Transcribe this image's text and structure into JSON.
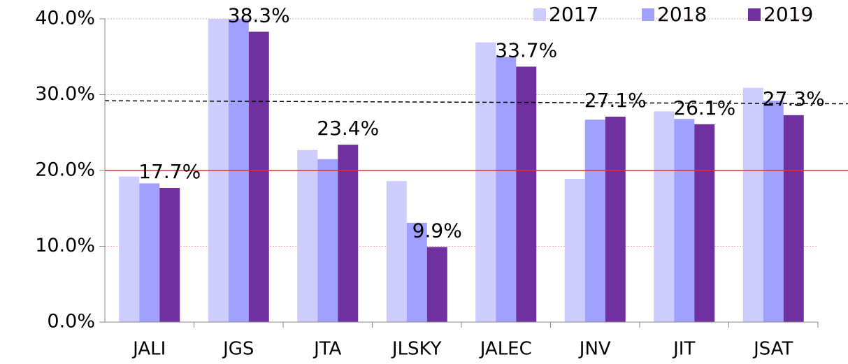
{
  "chart_data": {
    "type": "bar",
    "categories": [
      "JALI",
      "JGS",
      "JTA",
      "JLSKY",
      "JALEC",
      "JNV",
      "JIT",
      "JSAT"
    ],
    "series": [
      {
        "name": "2017",
        "color": "#ccccff",
        "values": [
          19.2,
          40.0,
          22.7,
          18.6,
          36.9,
          18.9,
          27.8,
          30.9
        ]
      },
      {
        "name": "2018",
        "color": "#a0a0ff",
        "values": [
          18.3,
          40.0,
          21.5,
          13.1,
          35.0,
          26.7,
          26.8,
          29.2
        ]
      },
      {
        "name": "2019",
        "color": "#7030a0",
        "values": [
          17.7,
          38.3,
          23.4,
          9.9,
          33.7,
          27.1,
          26.1,
          27.3
        ],
        "value_labels": [
          "17.7%",
          "38.3%",
          "23.4%",
          "9.9%",
          "33.7%",
          "27.1%",
          "26.1%",
          "27.3%"
        ]
      }
    ],
    "ylim": [
      0,
      40
    ],
    "yticks": [
      {
        "value": 0,
        "label": "0.0%"
      },
      {
        "value": 10,
        "label": "10.0%"
      },
      {
        "value": 20,
        "label": "20.0%"
      },
      {
        "value": 30,
        "label": "30.0%"
      },
      {
        "value": 40,
        "label": "40.0%"
      }
    ],
    "grid": true,
    "grid_color": "#f2a6a6",
    "reference_lines": [
      {
        "values": [
          20.0,
          20.0
        ],
        "color": "#e03030",
        "dashed": false
      },
      {
        "values": [
          29.2,
          28.8
        ],
        "color": "#000000",
        "dashed": true
      }
    ],
    "legend": "top-right"
  }
}
